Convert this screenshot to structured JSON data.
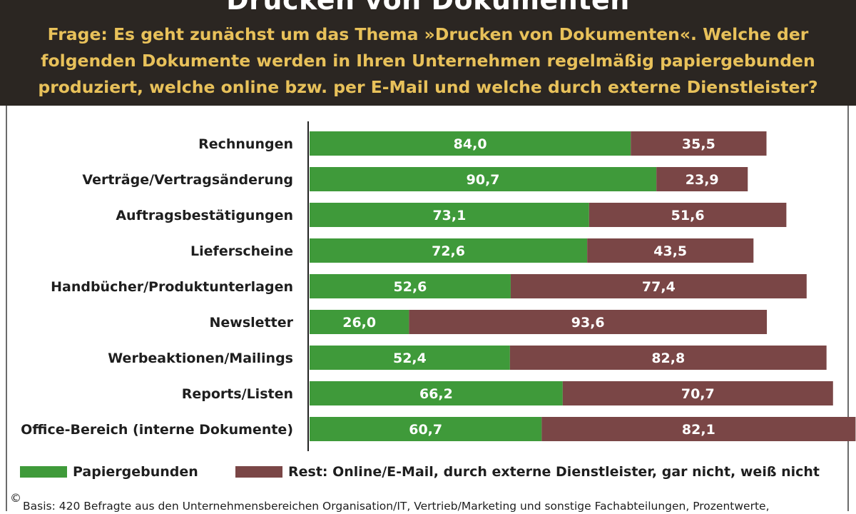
{
  "header": {
    "title": "Drucken von Dokumenten",
    "question": "Frage: Es geht zunächst um das Thema »Drucken von Dokumenten«. Welche der folgenden Dokumente werden in Ihren Unternehmen regelmäßig papiergebunden produziert, welche online bzw. per E-Mail und welche durch externe Dienstleister?"
  },
  "chart_data": {
    "type": "bar",
    "orientation": "horizontal",
    "stacked": true,
    "categories": [
      "Rechnungen",
      "Verträge/Vertragsänderung",
      "Auftragsbestätigungen",
      "Lieferscheine",
      "Handbücher/Produktunterlagen",
      "Newsletter",
      "Werbeaktionen/Mailings",
      "Reports/Listen",
      "Office-Bereich (interne Dokumente)"
    ],
    "series": [
      {
        "name": "Papiergebunden",
        "color": "#3f9a3a",
        "values": [
          84.0,
          90.7,
          73.1,
          72.6,
          52.6,
          26.0,
          52.4,
          66.2,
          60.7
        ],
        "labels": [
          "84,0",
          "90,7",
          "73,1",
          "72,6",
          "52,6",
          "26,0",
          "52,4",
          "66,2",
          "60,7"
        ]
      },
      {
        "name": "Rest: Online/E-Mail, durch externe Dienstleister, gar nicht, weiß nicht",
        "color": "#7a4646",
        "values": [
          35.5,
          23.9,
          51.6,
          43.5,
          77.4,
          93.6,
          82.8,
          70.7,
          82.1
        ],
        "labels": [
          "35,5",
          "23,9",
          "51,6",
          "43,5",
          "77,4",
          "93,6",
          "82,8",
          "70,7",
          "82,1"
        ]
      }
    ],
    "xlim": [
      0,
      150
    ],
    "grid": false,
    "legend": "bottom"
  },
  "legend": {
    "items": [
      {
        "label": "Papiergebunden",
        "color": "#3f9a3a"
      },
      {
        "label": "Rest: Online/E-Mail, durch externe Dienstleister, gar nicht, weiß nicht",
        "color": "#7a4646"
      }
    ]
  },
  "footnote": "Basis: 420 Befragte aus den Unternehmensbereichen Organisation/IT, Vertrieb/Marketing und sonstige Fachabteilungen, Prozentwerte,",
  "copyright": "©"
}
